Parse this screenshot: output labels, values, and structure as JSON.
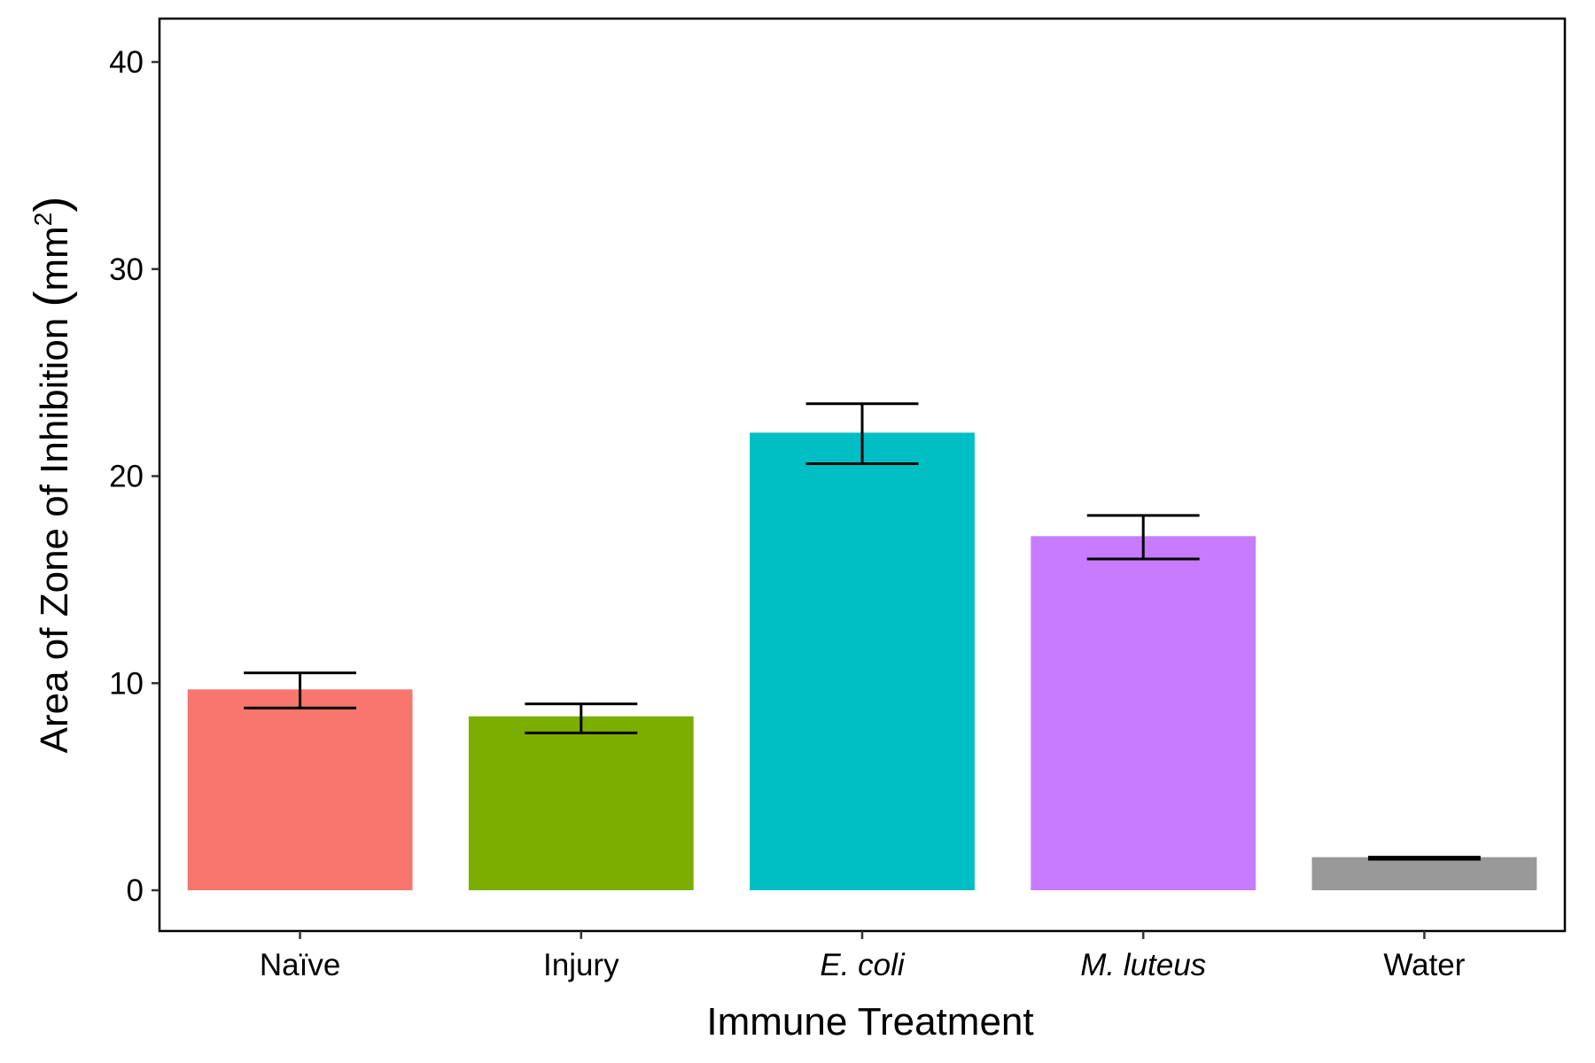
{
  "chart_data": {
    "type": "bar",
    "title": "",
    "xlabel": "Immune Treatment",
    "ylabel": "Area of Zone of Inhibition (mm²)",
    "ylabel_parts": {
      "text": "Area of Zone of Inhibition ",
      "paren_open": "(",
      "unit": "mm",
      "superscript": "2",
      "paren_close": ")"
    },
    "categories": [
      "Naïve",
      "Injury",
      "E. coli",
      "M. luteus",
      "Water"
    ],
    "category_italic": [
      false,
      false,
      true,
      true,
      false
    ],
    "values": [
      9.7,
      8.4,
      22.1,
      17.1,
      1.6
    ],
    "error_low": [
      8.8,
      7.6,
      20.6,
      16.0,
      1.5
    ],
    "error_high": [
      10.5,
      9.0,
      23.5,
      18.1,
      1.6
    ],
    "colors": [
      "#F8766D",
      "#7CAE00",
      "#00BFC4",
      "#C77CFF",
      "#999999"
    ],
    "ylim": [
      -2,
      42
    ],
    "yticks": [
      0,
      10,
      20,
      30,
      40
    ],
    "ytick_labels": [
      "0",
      "10",
      "20",
      "30",
      "40"
    ],
    "grid": false,
    "legend": "none"
  }
}
